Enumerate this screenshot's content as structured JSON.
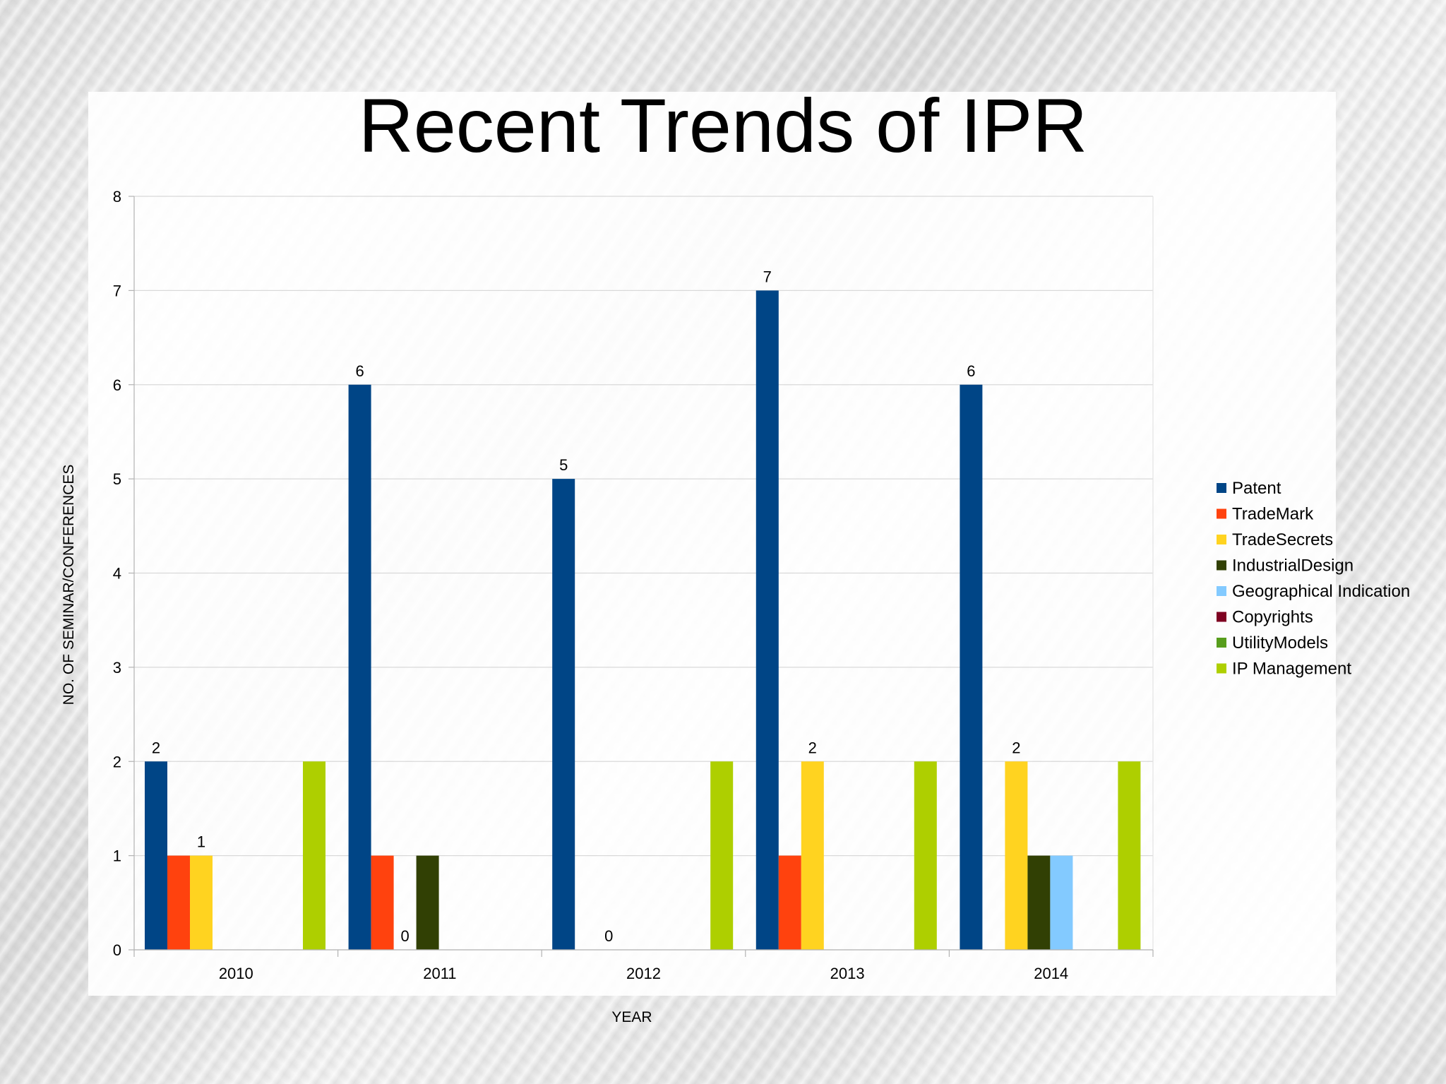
{
  "slide": {
    "title": "Recent Trends of IPR"
  },
  "chart_data": {
    "type": "bar",
    "title": "",
    "xlabel": "YEAR",
    "ylabel": "NO. OF SEMINAR/CONFERENCES",
    "ylim": [
      0,
      8
    ],
    "yticks": [
      0,
      1,
      2,
      3,
      4,
      5,
      6,
      7,
      8
    ],
    "grid": true,
    "legend_position": "right",
    "categories": [
      "2010",
      "2011",
      "2012",
      "2013",
      "2014"
    ],
    "series": [
      {
        "name": "Patent",
        "color": "#004586",
        "values": [
          2,
          6,
          5,
          7,
          6
        ],
        "labels": [
          "2",
          "6",
          "5",
          "7",
          "6"
        ]
      },
      {
        "name": "TradeMark",
        "color": "#ff420e",
        "values": [
          1,
          1,
          0,
          1,
          0
        ],
        "labels": [
          null,
          null,
          null,
          null,
          null
        ]
      },
      {
        "name": "TradeSecrets",
        "color": "#ffd320",
        "values": [
          1,
          0,
          0,
          2,
          2
        ],
        "labels": [
          "1",
          "0",
          "0",
          "2",
          "2"
        ]
      },
      {
        "name": "IndustrialDesign",
        "color": "#314004",
        "values": [
          0,
          1,
          0,
          0,
          1
        ],
        "labels": [
          null,
          null,
          null,
          null,
          null
        ]
      },
      {
        "name": "Geographical Indication",
        "color": "#83caff",
        "values": [
          0,
          0,
          0,
          0,
          1
        ],
        "labels": [
          null,
          null,
          null,
          null,
          null
        ]
      },
      {
        "name": "Copyrights",
        "color": "#7e0021",
        "values": [
          0,
          0,
          0,
          0,
          0
        ],
        "labels": [
          null,
          null,
          null,
          null,
          null
        ]
      },
      {
        "name": "UtilityModels",
        "color": "#579d1c",
        "values": [
          0,
          0,
          0,
          0,
          0
        ],
        "labels": [
          null,
          null,
          null,
          null,
          null
        ]
      },
      {
        "name": "IP Management",
        "color": "#aecf00",
        "values": [
          2,
          0,
          2,
          2,
          2
        ],
        "labels": [
          null,
          null,
          null,
          null,
          null
        ]
      }
    ]
  }
}
